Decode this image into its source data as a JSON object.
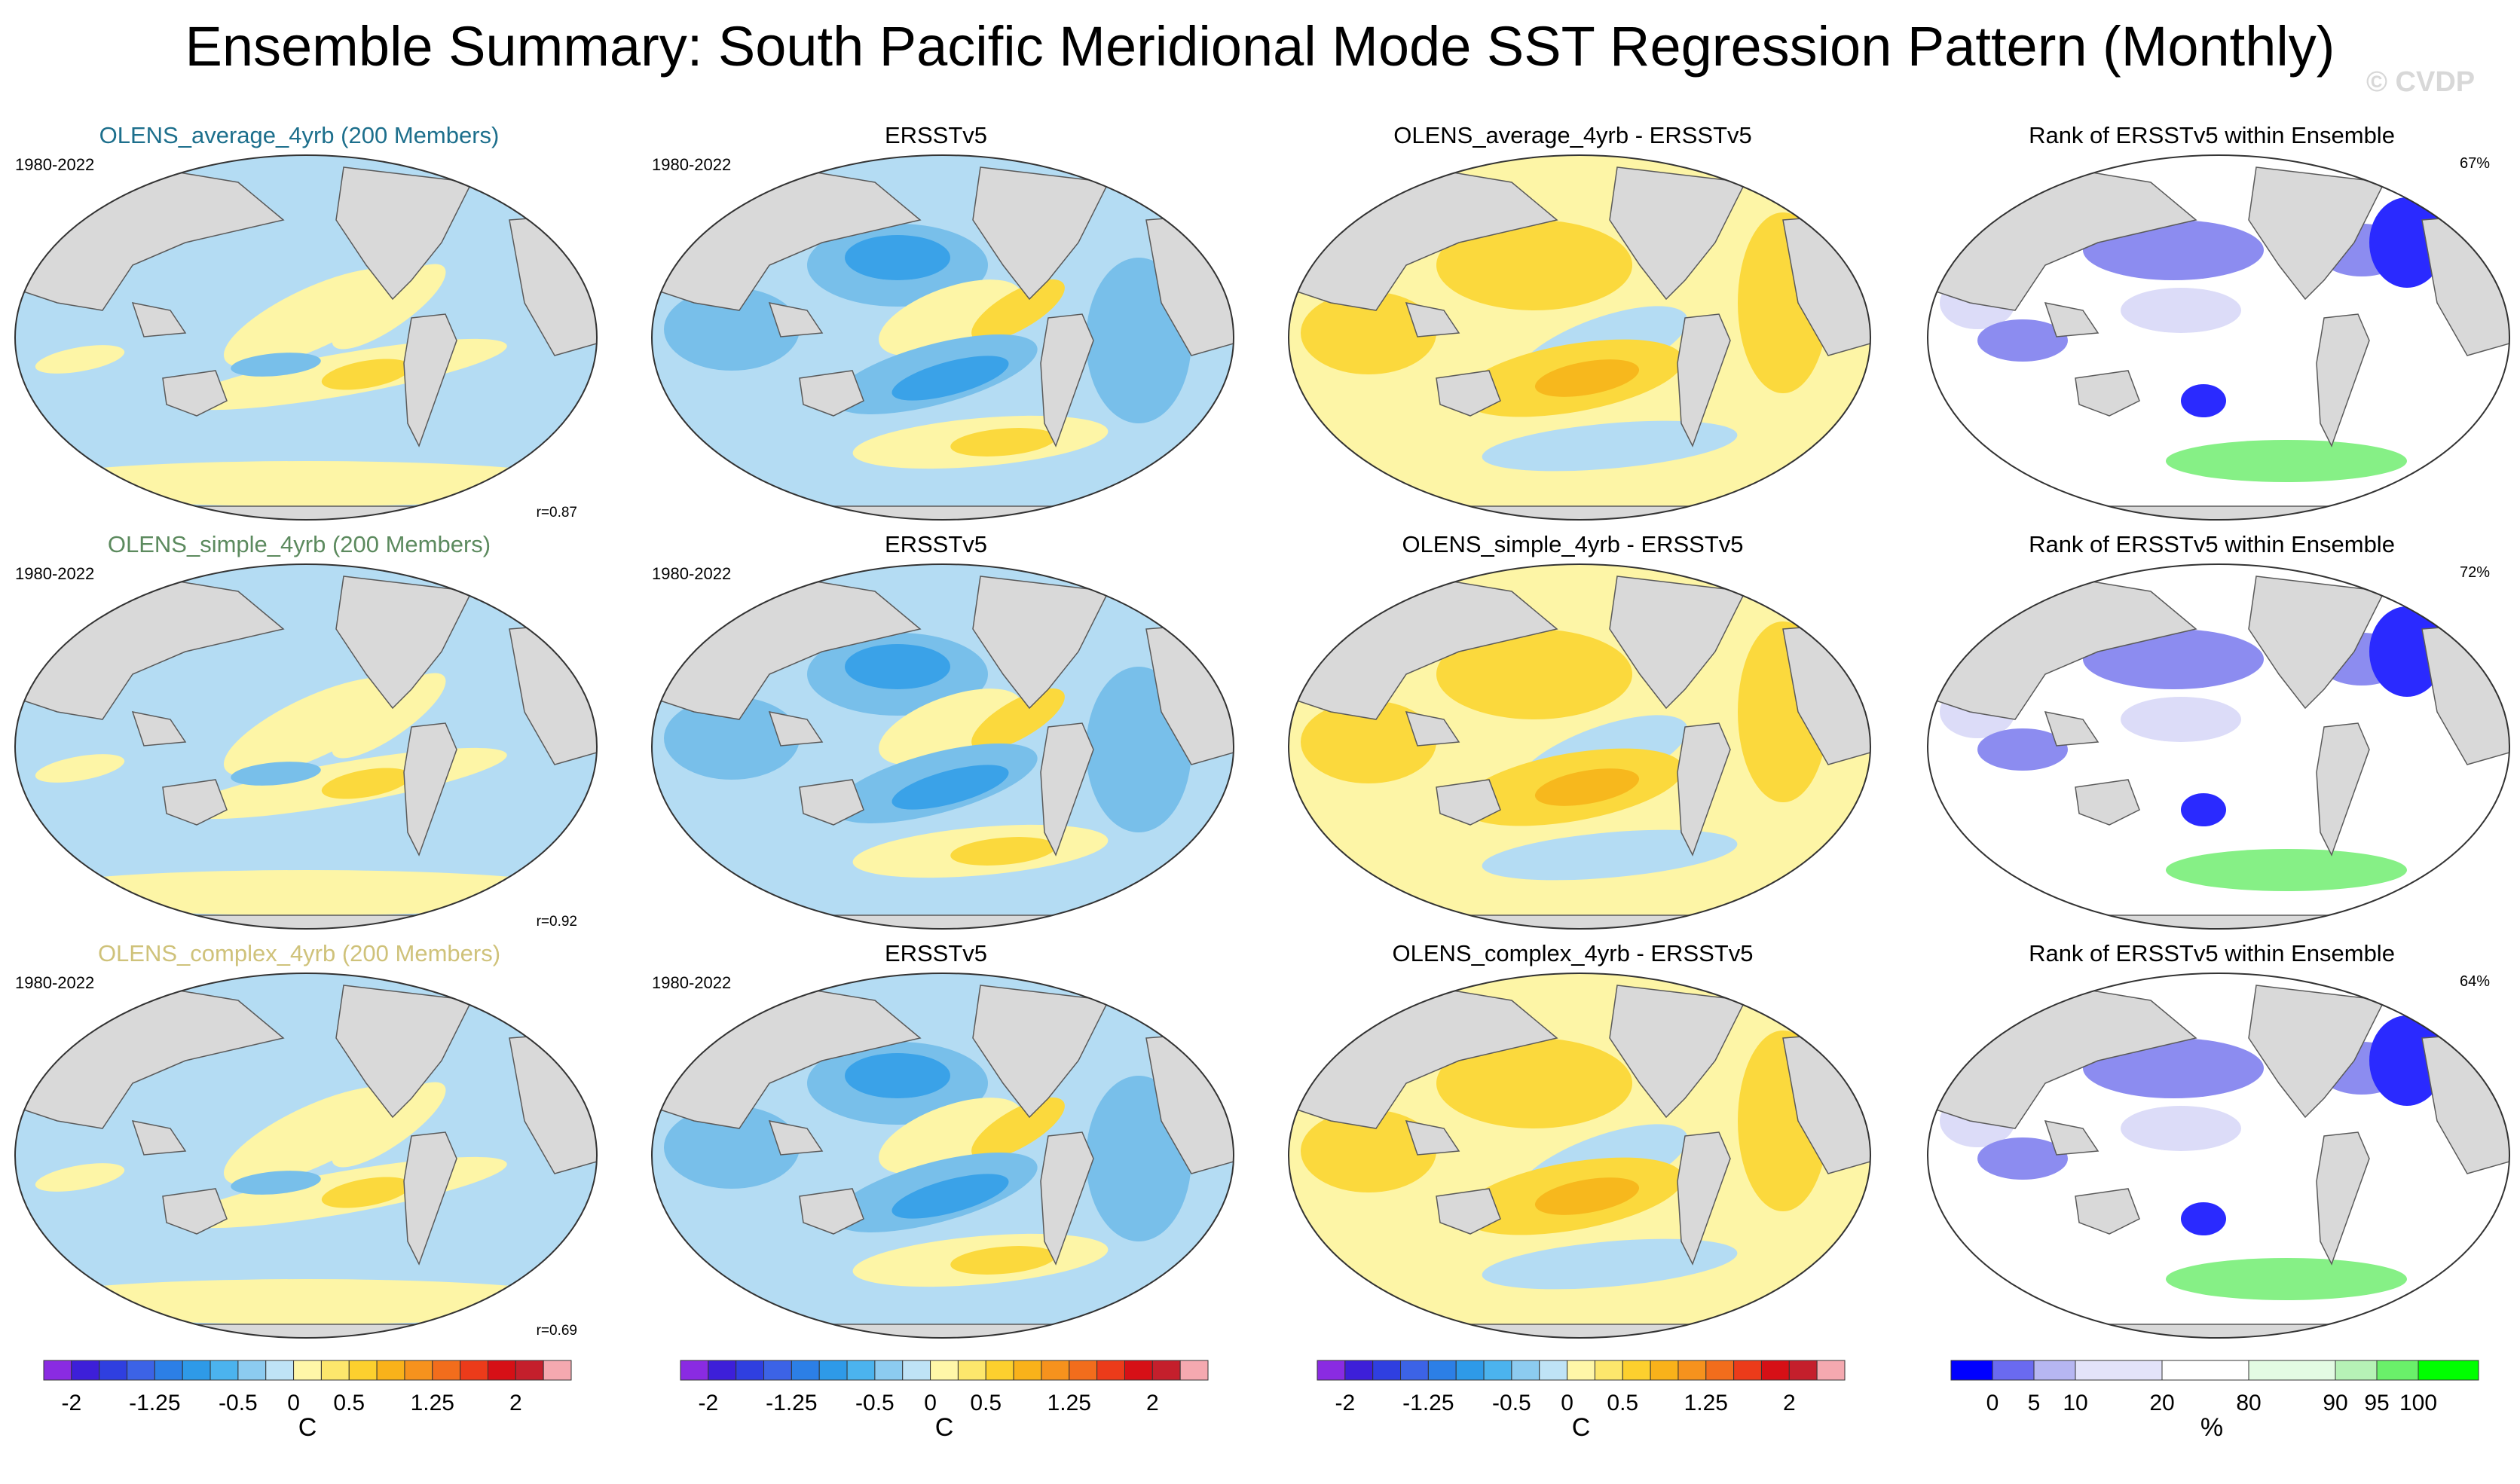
{
  "title": "Ensemble Summary: South Pacific Meridional Mode SST Regression Pattern (Monthly)",
  "watermark": "© CVDP",
  "colors": {
    "land": "#d9d9d9",
    "ocean_neg_light": "#b4dcf3",
    "ocean_neg_mid": "#78bfea",
    "ocean_neg_strong": "#3aa2e8",
    "ocean_pos_light": "#fdf5a6",
    "ocean_pos_mid": "#fbd93d",
    "ocean_pos_strong": "#f7b81d",
    "rank_low": "#2a2aff",
    "rank_mid": "#8c8cf0",
    "rank_light": "#dcdcf8",
    "rank_high": "#86f086",
    "title_average": "#1d6f8c",
    "title_simple": "#5c8a5e",
    "title_complex": "#cfc27a"
  },
  "rows": [
    {
      "model": {
        "title": "OLENS_average_4yrb (200 Members)",
        "period": "1980-2022",
        "pattern_correlation": "r=0.87",
        "title_color_key": "title_average"
      },
      "obs": {
        "title": "ERSSTv5",
        "period": "1980-2022"
      },
      "diff": {
        "title": "OLENS_average_4yrb - ERSSTv5"
      },
      "rank": {
        "title": "Rank of ERSSTv5 within Ensemble",
        "percent": "67%"
      }
    },
    {
      "model": {
        "title": "OLENS_simple_4yrb (200 Members)",
        "period": "1980-2022",
        "pattern_correlation": "r=0.92",
        "title_color_key": "title_simple"
      },
      "obs": {
        "title": "ERSSTv5",
        "period": "1980-2022"
      },
      "diff": {
        "title": "OLENS_simple_4yrb - ERSSTv5"
      },
      "rank": {
        "title": "Rank of ERSSTv5 within Ensemble",
        "percent": "72%"
      }
    },
    {
      "model": {
        "title": "OLENS_complex_4yrb (200 Members)",
        "period": "1980-2022",
        "pattern_correlation": "r=0.69",
        "title_color_key": "title_complex"
      },
      "obs": {
        "title": "ERSSTv5",
        "period": "1980-2022"
      },
      "diff": {
        "title": "OLENS_complex_4yrb - ERSSTv5"
      },
      "rank": {
        "title": "Rank of ERSSTv5 within Ensemble",
        "percent": "64%"
      }
    }
  ],
  "chart_data": {
    "type": "heatmap",
    "projection": "Robinson (Pacific-centered)",
    "variable": "SST regression onto South Pacific Meridional Mode index",
    "sst_colorbar": {
      "units": "C",
      "levels": [
        -2,
        -1.75,
        -1.5,
        -1.25,
        -1,
        -0.75,
        -0.5,
        -0.25,
        0,
        0.25,
        0.5,
        0.75,
        1,
        1.25,
        1.5,
        1.75,
        2
      ],
      "tick_labels": [
        "-2",
        "-1.25",
        "-0.5",
        "0",
        "0.5",
        "1.25",
        "2"
      ],
      "tick_values": [
        -2,
        -1.25,
        -0.5,
        0,
        0.5,
        1.25,
        2
      ],
      "colors": [
        "#8a2be2",
        "#3d1fd9",
        "#2f3fe0",
        "#3c63e6",
        "#2c7fe6",
        "#2e9ae8",
        "#4bb3ee",
        "#8ccbf0",
        "#bfe3f6",
        "#fff7a8",
        "#fde76c",
        "#fcd02e",
        "#f9b21a",
        "#f6921d",
        "#f26d1c",
        "#ec3b1a",
        "#d61016",
        "#c41f2c",
        "#f5a9b0"
      ]
    },
    "rank_colorbar": {
      "units": "%",
      "levels": [
        0,
        5,
        10,
        20,
        80,
        90,
        95,
        100
      ],
      "tick_labels": [
        "0",
        "5",
        "10",
        "20",
        "80",
        "90",
        "95",
        "100"
      ],
      "colors": [
        "#0000ff",
        "#6a6af0",
        "#b6b6f2",
        "#e3e3fa",
        "#ffffff",
        "#e3fbe3",
        "#b6f2b6",
        "#6af06a",
        "#00ff00"
      ]
    }
  }
}
